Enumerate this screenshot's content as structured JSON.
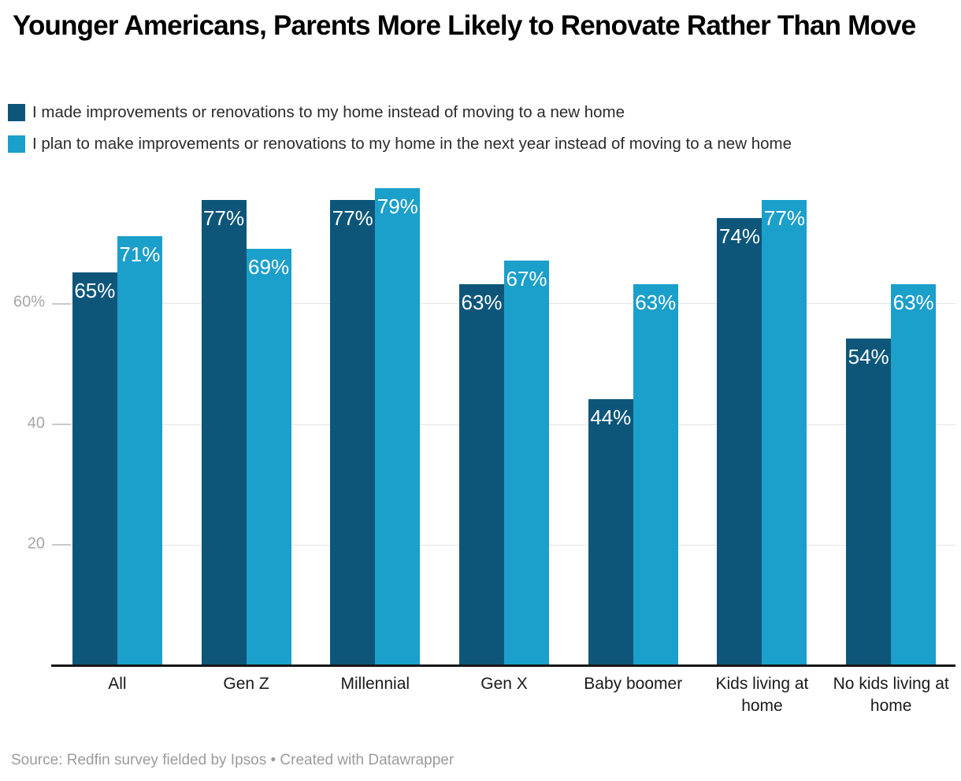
{
  "header": {
    "title": "Younger Americans, Parents More Likely to Renovate Rather Than Move"
  },
  "legend": {
    "position": "top",
    "items": [
      {
        "label": "I made improvements or renovations to my home instead of moving to a new home",
        "color": "#0d567a"
      },
      {
        "label": "I plan to make improvements or renovations to my home in the next year instead of moving to a new home",
        "color": "#1b9fcb"
      }
    ]
  },
  "chart_data": {
    "type": "bar",
    "title": "Younger Americans, Parents More Likely to Renovate Rather Than Move",
    "categories": [
      "All",
      "Gen Z",
      "Millennial",
      "Gen X",
      "Baby boomer",
      "Kids living at home",
      "No kids living at home"
    ],
    "series": [
      {
        "name": "I made improvements or renovations to my home instead of moving to a new home",
        "color": "#0d567a",
        "values": [
          65,
          77,
          77,
          63,
          44,
          74,
          54
        ]
      },
      {
        "name": "I plan to make improvements or renovations to my home in the next year instead of moving to a new home",
        "color": "#1b9fcb",
        "values": [
          71,
          69,
          79,
          67,
          63,
          77,
          63
        ]
      }
    ],
    "value_label_suffix": "%",
    "xlabel": "",
    "ylabel": "",
    "ylim": [
      0,
      80.3
    ],
    "grid": true,
    "legend_position": "top",
    "y_ticks": [
      {
        "value": 20,
        "label": "20"
      },
      {
        "value": 40,
        "label": "40"
      },
      {
        "value": 60,
        "label": "60%"
      }
    ]
  },
  "footer": {
    "source": "Source: Redfin survey fielded by Ipsos • Created with Datawrapper"
  },
  "colors": {
    "series_dark": "#0d567a",
    "series_light": "#1b9fcb",
    "gridline": "#e4e4e4",
    "axis_line": "#161616",
    "tick_text": "#a6a6a6",
    "category_text": "#1a1a1a",
    "source_text": "#9b9b9b"
  }
}
